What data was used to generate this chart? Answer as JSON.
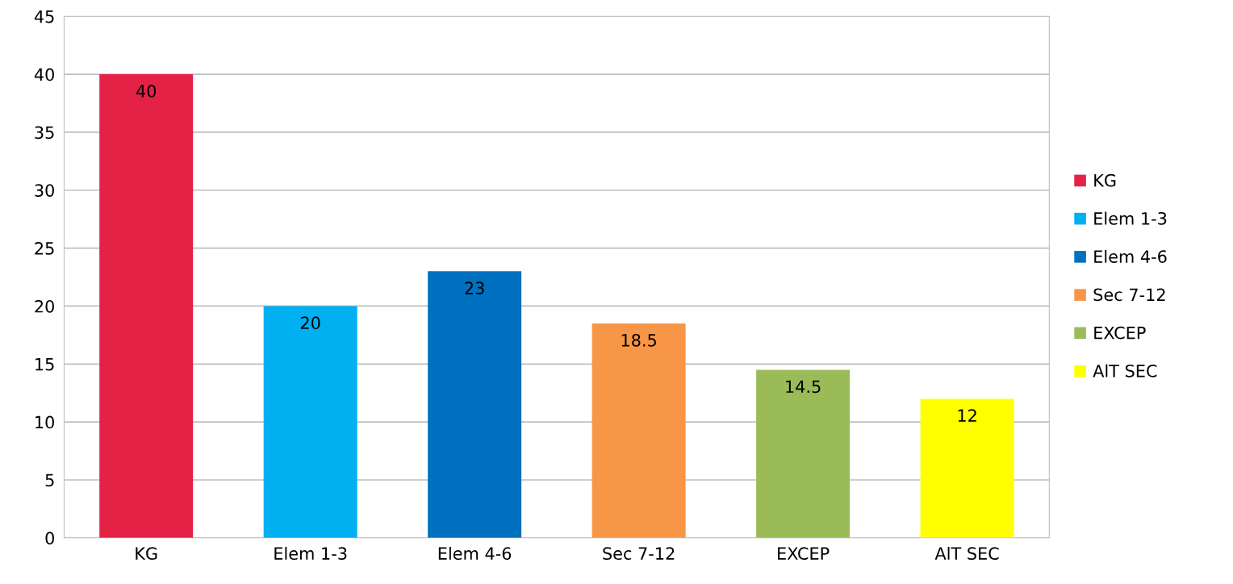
{
  "chart_data": {
    "type": "bar",
    "categories": [
      "KG",
      "Elem 1-3",
      "Elem 4-6",
      "Sec 7-12",
      "EXCEP",
      "AlT SEC"
    ],
    "series": [
      {
        "name": "KG",
        "color": "#e32245",
        "values": [
          40,
          null,
          null,
          null,
          null,
          null
        ]
      },
      {
        "name": "Elem 1-3",
        "color": "#00b0f0",
        "values": [
          null,
          20,
          null,
          null,
          null,
          null
        ]
      },
      {
        "name": "Elem 4-6",
        "color": "#0070c0",
        "values": [
          null,
          null,
          23,
          null,
          null,
          null
        ]
      },
      {
        "name": "Sec 7-12",
        "color": "#f79646",
        "values": [
          null,
          null,
          null,
          18.5,
          null,
          null
        ]
      },
      {
        "name": "EXCEP",
        "color": "#9bbb59",
        "values": [
          null,
          null,
          null,
          null,
          14.5,
          null
        ]
      },
      {
        "name": "AlT SEC",
        "color": "#ffff00",
        "values": [
          null,
          null,
          null,
          null,
          null,
          12
        ]
      }
    ],
    "ylim": [
      0,
      45
    ],
    "yticks": [
      0,
      5,
      10,
      15,
      20,
      25,
      30,
      35,
      40,
      45
    ],
    "grid": "y",
    "legend": "right",
    "data_labels": true
  }
}
